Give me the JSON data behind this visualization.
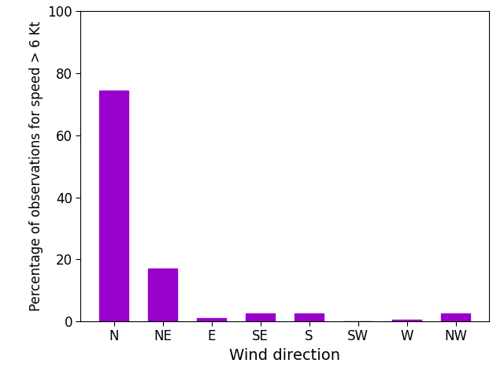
{
  "categories": [
    "N",
    "NE",
    "E",
    "SE",
    "S",
    "SW",
    "W",
    "NW"
  ],
  "values": [
    74.5,
    17.0,
    1.0,
    2.5,
    2.5,
    0.0,
    0.5,
    2.5
  ],
  "bar_color": "#9900cc",
  "xlabel": "Wind direction",
  "ylabel": "Percentage of observations for speed > 6 Kt",
  "ylim": [
    0,
    100
  ],
  "yticks": [
    0,
    20,
    40,
    60,
    80,
    100
  ],
  "background_color": "#ffffff",
  "xlabel_fontsize": 14,
  "ylabel_fontsize": 12,
  "tick_fontsize": 12,
  "bar_width": 0.6
}
